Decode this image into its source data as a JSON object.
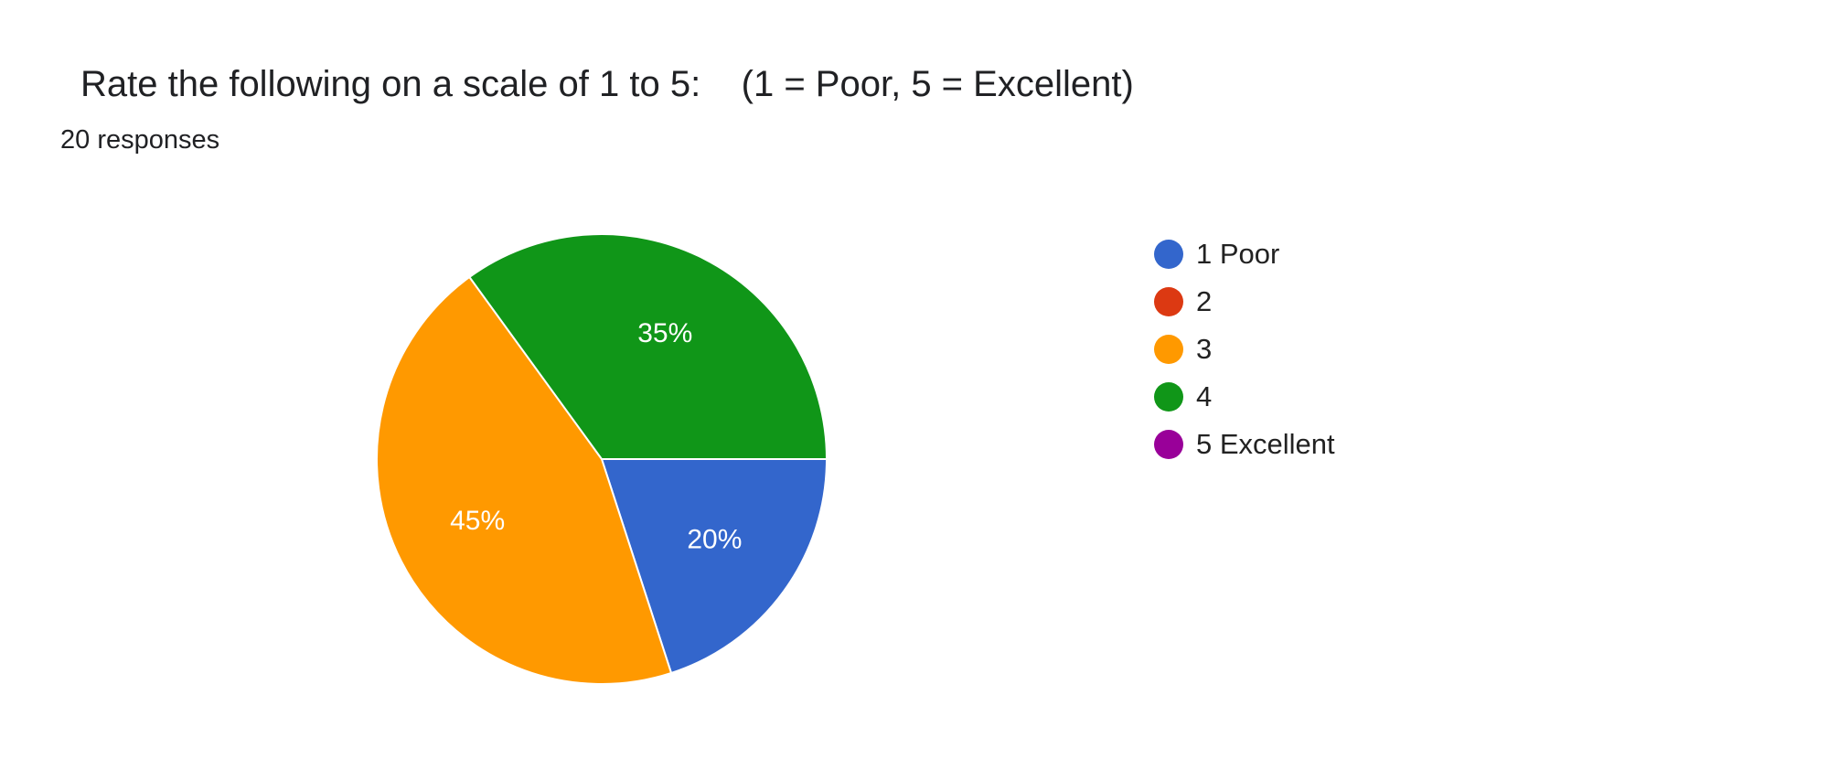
{
  "chart_data": {
    "type": "pie",
    "title": "Rate the following on a scale of 1 to 5:    (1 = Poor, 5 = Excellent)",
    "subtitle": "20 responses",
    "categories": [
      "1 Poor",
      "2",
      "3",
      "4",
      "5 Excellent"
    ],
    "values": [
      20,
      0,
      45,
      35,
      0
    ],
    "data_labels": [
      "20%",
      "",
      "45%",
      "35%",
      ""
    ],
    "colors": [
      "#3366cc",
      "#dc3912",
      "#ff9900",
      "#109618",
      "#990099"
    ],
    "legend_position": "right",
    "label_color": "#ffffff",
    "slice_border_color": "#ffffff"
  }
}
